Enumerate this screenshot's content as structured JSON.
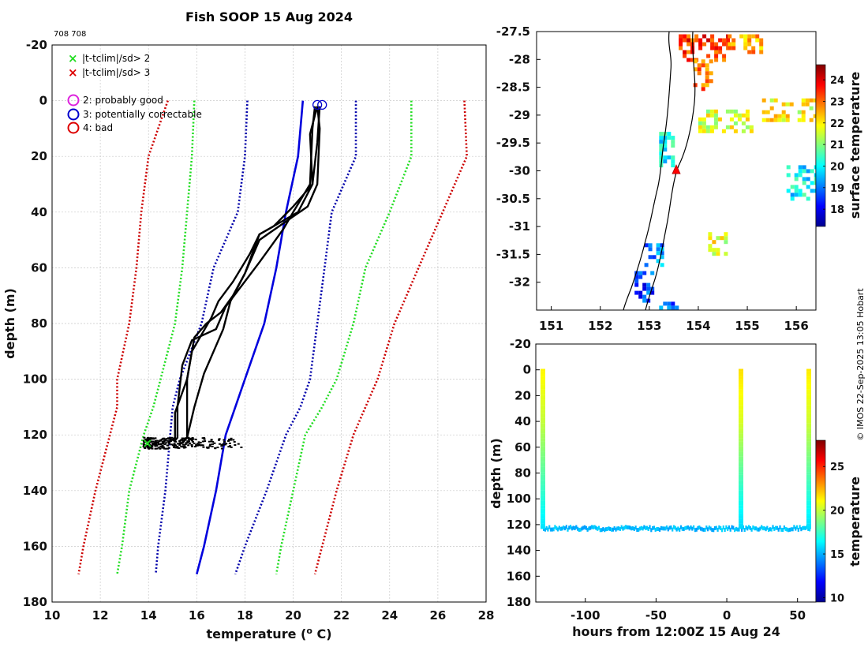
{
  "title": "Fish SOOP 15 Aug 2024",
  "platform_ids": "708 708",
  "credit": "© IMOS 22-Sep-2025 13:05 Hobart",
  "legend": {
    "flag2_label": "|t-tclim|/sd> 2",
    "flag3_label": "|t-tclim|/sd> 3",
    "qc2_label": "2: probably good",
    "qc3_label": "3: potentially correctable",
    "qc4_label": "4: bad",
    "colors": {
      "flag2": "#22dd22",
      "flag3": "#dd0000",
      "qc2": "#dd22dd",
      "qc3": "#0000cc",
      "qc4": "#dd0000"
    }
  },
  "colorbar_labels": {
    "map": "surface temperature",
    "section": "temperature"
  },
  "chart_data": [
    {
      "type": "line",
      "name": "profile",
      "title": "Fish SOOP 15 Aug 2024",
      "xlabel": "temperature (",
      "xlabel_sup": "o",
      "xlabel_end": " C)",
      "ylabel": "depth (m)",
      "xlim": [
        10,
        28
      ],
      "ylim": [
        180,
        -20
      ],
      "xticks": [
        10,
        12,
        14,
        16,
        18,
        20,
        22,
        24,
        26,
        28
      ],
      "yticks": [
        -20,
        0,
        20,
        40,
        60,
        80,
        100,
        120,
        140,
        160,
        180
      ],
      "depth": [
        0,
        20,
        40,
        60,
        80,
        100,
        110,
        120,
        140,
        160,
        170
      ],
      "series": [
        {
          "name": "climatology minus 3 sd",
          "color": "#cc0000",
          "dash": true,
          "x": [
            14.8,
            14.0,
            13.7,
            13.5,
            13.2,
            12.7,
            12.7,
            12.4,
            11.8,
            11.3,
            11.1
          ]
        },
        {
          "name": "climatology minus 2 sd",
          "color": "#22dd22",
          "dash": true,
          "x": [
            15.9,
            15.8,
            15.6,
            15.4,
            15.1,
            14.5,
            14.2,
            13.8,
            13.2,
            12.9,
            12.7
          ]
        },
        {
          "name": "climatology minus 1 sd",
          "color": "#0000aa",
          "dash": true,
          "x": [
            18.1,
            18.0,
            17.7,
            16.7,
            16.2,
            15.3,
            15.0,
            14.9,
            14.7,
            14.4,
            14.3
          ]
        },
        {
          "name": "climatology mean",
          "color": "#0000dd",
          "dash": false,
          "x": [
            20.4,
            20.2,
            19.7,
            19.3,
            18.8,
            18.0,
            17.6,
            17.2,
            16.8,
            16.3,
            16.0
          ]
        },
        {
          "name": "climatology plus 1 sd",
          "color": "#0000aa",
          "dash": true,
          "x": [
            22.6,
            22.6,
            21.6,
            21.3,
            21.0,
            20.7,
            20.3,
            19.7,
            18.9,
            18.0,
            17.6
          ]
        },
        {
          "name": "climatology plus 2 sd",
          "color": "#22dd22",
          "dash": true,
          "x": [
            24.9,
            24.9,
            24.0,
            23.0,
            22.5,
            21.8,
            21.2,
            20.5,
            20.0,
            19.5,
            19.3
          ]
        },
        {
          "name": "climatology plus 3 sd",
          "color": "#cc0000",
          "dash": true,
          "x": [
            27.1,
            27.2,
            26.2,
            25.2,
            24.2,
            23.5,
            23.0,
            22.5,
            21.8,
            21.2,
            20.9
          ]
        }
      ],
      "profiles": [
        {
          "d": [
            2,
            10,
            30,
            38,
            44,
            50,
            62,
            72,
            82,
            88,
            98,
            110,
            121,
            122
          ],
          "x": [
            21.0,
            21.1,
            21.0,
            20.6,
            19.6,
            18.6,
            18.0,
            17.4,
            17.1,
            16.8,
            16.3,
            15.9,
            15.6,
            15.3
          ]
        },
        {
          "d": [
            2,
            10,
            30,
            40,
            46,
            52,
            58,
            66,
            74,
            82,
            86,
            95,
            110,
            121,
            122
          ],
          "x": [
            20.9,
            20.8,
            20.7,
            20.0,
            19.6,
            19.1,
            18.6,
            17.9,
            17.2,
            16.8,
            15.8,
            15.4,
            15.2,
            15.2,
            15.1
          ]
        },
        {
          "d": [
            2,
            12,
            30,
            38,
            45,
            48,
            55,
            62,
            70,
            76,
            80,
            85,
            100,
            110,
            121,
            123
          ],
          "x": [
            21.0,
            20.7,
            20.8,
            20.0,
            19.2,
            18.6,
            18.3,
            18.0,
            17.5,
            17.0,
            16.4,
            15.9,
            15.6,
            15.6,
            15.6,
            15.4
          ]
        },
        {
          "d": [
            2,
            15,
            30,
            40,
            45,
            48,
            55,
            65,
            72,
            78,
            84,
            90,
            100,
            112,
            121,
            123
          ],
          "x": [
            21.1,
            21.0,
            20.8,
            20.2,
            19.2,
            18.6,
            18.2,
            17.5,
            16.9,
            16.6,
            16.2,
            15.8,
            15.6,
            15.1,
            15.1,
            14.8
          ]
        }
      ],
      "bottom_scatter": {
        "depth": [
          121,
          125
        ],
        "x": [
          13.8,
          18.2
        ]
      },
      "markers": [
        {
          "type": "qc3_circle",
          "x": 21.0,
          "depth": 1.5
        },
        {
          "type": "qc3_circle",
          "x": 21.2,
          "depth": 1.5
        },
        {
          "type": "flag2_cross",
          "x": 13.9,
          "depth": 123
        }
      ]
    },
    {
      "type": "heatmap",
      "name": "surface temperature map",
      "xlim": [
        150.7,
        156.4
      ],
      "ylim": [
        -32.5,
        -27.5
      ],
      "xticks": [
        151,
        152,
        153,
        154,
        155,
        156
      ],
      "yticks": [
        -27.5,
        -28,
        -28.5,
        -29,
        -29.5,
        -30,
        -30.5,
        -31,
        -31.5,
        -32
      ],
      "colorbar": {
        "label": "surface temperature",
        "range": [
          17.2,
          24.7
        ],
        "ticks": [
          18,
          19,
          20,
          21,
          22,
          23,
          24
        ]
      },
      "position_marker": {
        "lon": 153.55,
        "lat": -29.98
      },
      "patches": [
        {
          "lon": [
            153.6,
            154.6
          ],
          "lat": [
            -27.55,
            -28.0
          ],
          "t": 23.4
        },
        {
          "lon": [
            154.6,
            155.4
          ],
          "lat": [
            -27.55,
            -27.85
          ],
          "t": 22.6
        },
        {
          "lon": [
            153.9,
            154.3
          ],
          "lat": [
            -28.0,
            -28.5
          ],
          "t": 23.0
        },
        {
          "lon": [
            154.0,
            155.1
          ],
          "lat": [
            -28.9,
            -29.3
          ],
          "t": 21.6
        },
        {
          "lon": [
            155.3,
            156.4
          ],
          "lat": [
            -28.7,
            -29.1
          ],
          "t": 21.9
        },
        {
          "lon": [
            153.2,
            153.5
          ],
          "lat": [
            -29.3,
            -29.9
          ],
          "t": 20.1
        },
        {
          "lon": [
            155.8,
            156.4
          ],
          "lat": [
            -29.9,
            -30.5
          ],
          "t": 20.0
        },
        {
          "lon": [
            154.2,
            154.6
          ],
          "lat": [
            -31.1,
            -31.5
          ],
          "t": 21.7
        },
        {
          "lon": [
            152.9,
            153.3
          ],
          "lat": [
            -31.3,
            -31.7
          ],
          "t": 19.2
        },
        {
          "lon": [
            152.7,
            153.1
          ],
          "lat": [
            -31.8,
            -32.3
          ],
          "t": 18.6
        },
        {
          "lon": [
            153.2,
            153.6
          ],
          "lat": [
            -32.35,
            -32.5
          ],
          "t": 18.9
        }
      ]
    },
    {
      "type": "heatmap",
      "name": "temperature section",
      "xlabel": "hours from 12:00Z 15 Aug 24",
      "ylabel": "depth (m)",
      "xlim": [
        -135,
        63
      ],
      "ylim": [
        180,
        -20
      ],
      "xticks": [
        -100,
        -50,
        0,
        50
      ],
      "yticks": [
        -20,
        0,
        20,
        40,
        60,
        80,
        100,
        120,
        140,
        160,
        180
      ],
      "colorbar": {
        "label": "temperature",
        "range": [
          9.5,
          28
        ],
        "ticks": [
          10,
          15,
          20,
          25
        ]
      },
      "casts": [
        {
          "hours": -130,
          "depth_max": 123,
          "t_surface": 21.2,
          "t_bottom": 15.8
        },
        {
          "hours": 10,
          "depth_max": 122,
          "t_surface": 21.6,
          "t_bottom": 15.6
        },
        {
          "hours": 58,
          "depth_max": 123,
          "t_surface": 21.4,
          "t_bottom": 15.7
        }
      ],
      "bottom_track": {
        "hours": [
          -130,
          58
        ],
        "depth": 123,
        "t": 15.2
      }
    }
  ]
}
